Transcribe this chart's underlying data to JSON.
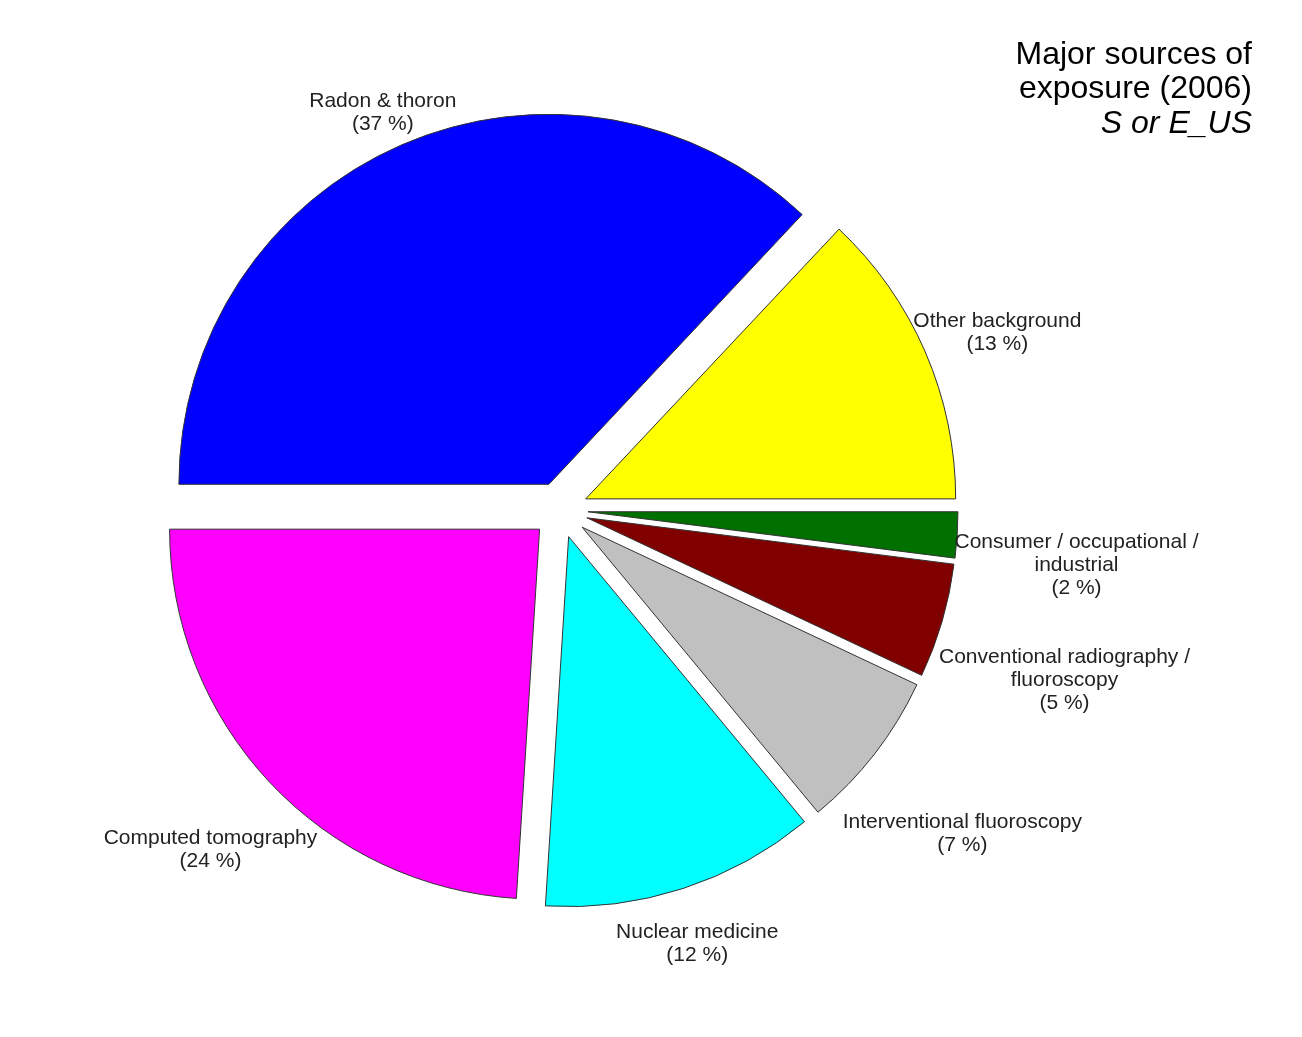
{
  "chart_data": {
    "type": "pie",
    "title": "Major sources of exposure (2006)",
    "subtitle": "S or E_US",
    "categories": [
      "Radon & thoron",
      "Other background",
      "Consumer / occupational / industrial",
      "Conventional radiography / fluoroscopy",
      "Interventional fluoroscopy",
      "Nuclear medicine",
      "Computed tomography"
    ],
    "values": [
      37,
      13,
      2,
      5,
      7,
      12,
      24
    ],
    "value_labels": [
      "(37 %)",
      "(13 %)",
      "(2 %)",
      "(5 %)",
      "(7 %)",
      "(12 %)",
      "(24 %)"
    ],
    "colors": [
      "#0000ff",
      "#ffff00",
      "#007000",
      "#800000",
      "#c0c0c0",
      "#00ffff",
      "#ff00ff"
    ]
  }
}
